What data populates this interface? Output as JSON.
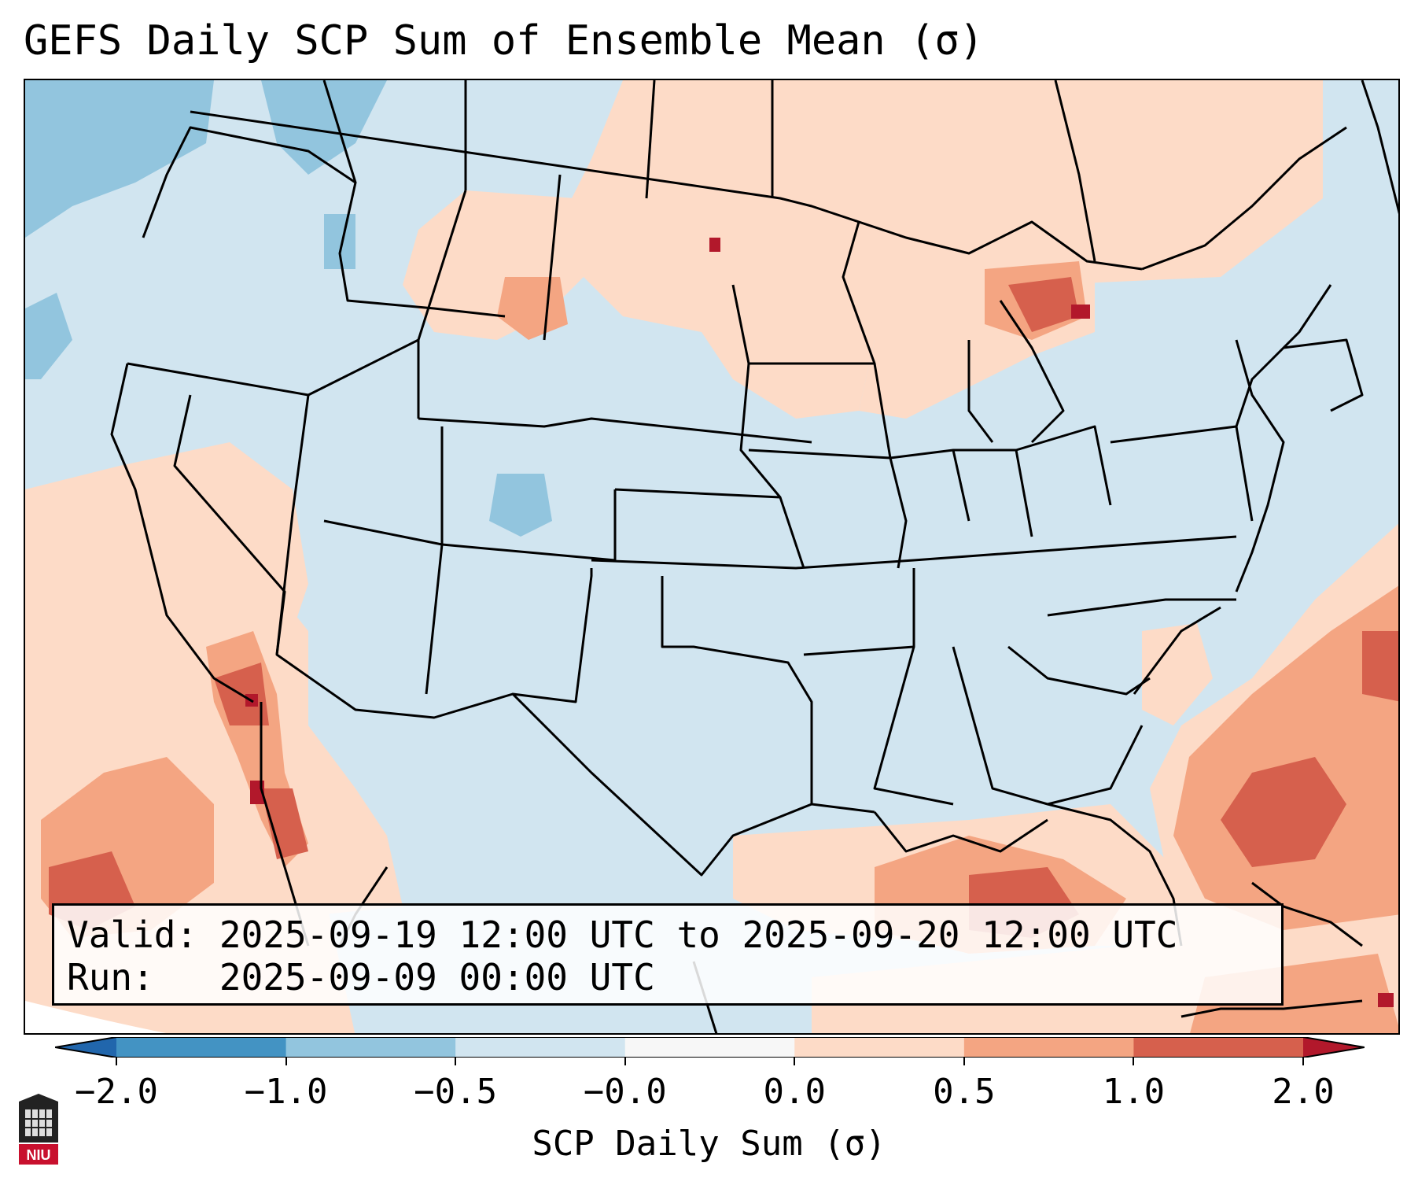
{
  "title": "GEFS Daily SCP Sum of Ensemble Mean (σ)",
  "info": {
    "valid_label": "Valid:",
    "valid_value": "2025-09-19 12:00 UTC to 2025-09-20 12:00 UTC",
    "run_label": "Run:",
    "run_value": "2025-09-09 00:00 UTC"
  },
  "colorbar": {
    "label": "SCP Daily Sum (σ)",
    "ticks": [
      "−2.0",
      "−1.0",
      "−0.5",
      "−0.0",
      "0.0",
      "0.5",
      "1.0",
      "2.0"
    ],
    "bins": [
      {
        "from": "-2.0",
        "to": "-1.0",
        "color": "#4393c3"
      },
      {
        "from": "-1.0",
        "to": "-0.5",
        "color": "#92c5de"
      },
      {
        "from": "-0.5",
        "to": "-0.0",
        "color": "#d1e5f0"
      },
      {
        "from": "-0.0",
        "to": "0.0",
        "color": "#f7f7f7"
      },
      {
        "from": "0.0",
        "to": "0.5",
        "color": "#fddbc7"
      },
      {
        "from": "0.5",
        "to": "1.0",
        "color": "#f4a582"
      },
      {
        "from": "1.0",
        "to": "2.0",
        "color": "#d6604d"
      }
    ],
    "under_color": "#2166ac",
    "over_color": "#b2182b"
  },
  "logo": {
    "text": "NIU",
    "color": "#c8102e"
  }
}
